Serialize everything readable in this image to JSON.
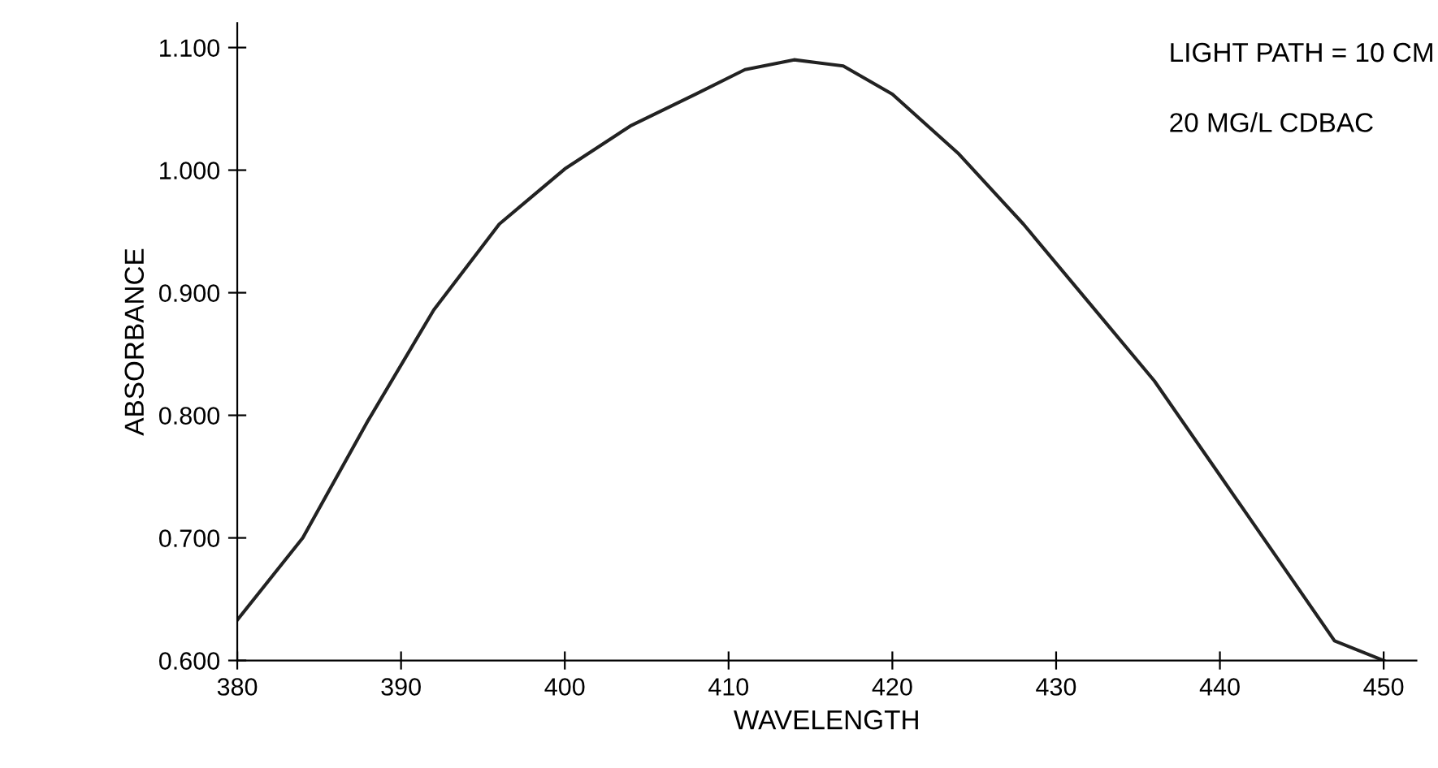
{
  "chart_data": {
    "type": "line",
    "xlabel": "WAVELENGTH",
    "ylabel": "ABSORBANCE",
    "annotations": [
      "LIGHT PATH = 10 CM",
      "20 MG/L CDBAC"
    ],
    "x": [
      380,
      384,
      388,
      392,
      396,
      400,
      404,
      408,
      411,
      414,
      417,
      420,
      424,
      428,
      432,
      436,
      440,
      444,
      447,
      450
    ],
    "series": [
      {
        "color": "#222222",
        "values": [
          0.633,
          0.7,
          0.796,
          0.886,
          0.956,
          1.001,
          1.036,
          1.062,
          1.082,
          1.09,
          1.085,
          1.062,
          1.014,
          0.956,
          0.892,
          0.828,
          0.751,
          0.674,
          0.616,
          0.6
        ]
      }
    ],
    "xlim": [
      380,
      452
    ],
    "ylim": [
      0.6,
      1.12
    ],
    "xticks": [
      380,
      390,
      400,
      410,
      420,
      430,
      440,
      450
    ],
    "yticks": [
      {
        "value": 0.6,
        "label": "0.600"
      },
      {
        "value": 0.7,
        "label": "0.700"
      },
      {
        "value": 0.8,
        "label": "0.800"
      },
      {
        "value": 0.9,
        "label": "0.900"
      },
      {
        "value": 1.0,
        "label": "1.000"
      },
      {
        "value": 1.1,
        "label": "1.100"
      }
    ],
    "grid": false,
    "legend": false,
    "marker": "none",
    "line_style": "solid"
  }
}
